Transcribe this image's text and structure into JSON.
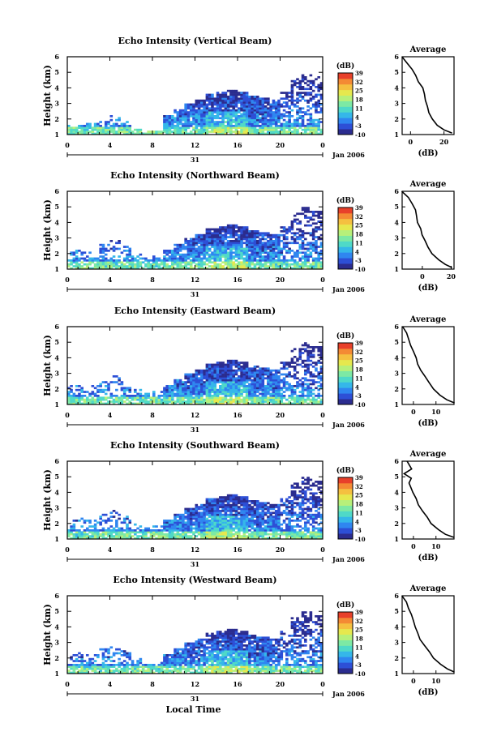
{
  "figure": {
    "xlabel_bottom": "Local Time",
    "date_label": "Jan 2006",
    "day_label": "31",
    "x_ticks": [
      "0",
      "4",
      "8",
      "12",
      "16",
      "20",
      "0"
    ],
    "y_ticks": [
      "1",
      "2",
      "3",
      "4",
      "5",
      "6"
    ],
    "ylabel": "Height (km)",
    "colorbar_unit": "(dB)",
    "colorbar_ticks": [
      "-10",
      "-3",
      "4",
      "11",
      "18",
      "25",
      "32",
      "39"
    ],
    "avg_title": "Average",
    "avg_xlabel": "(dB)",
    "colormap": [
      "#2b2c8f",
      "#2d4fd6",
      "#2f86f0",
      "#35b7e9",
      "#4fd9c8",
      "#7de9a4",
      "#b7f07a",
      "#e6e84e",
      "#f5c040",
      "#f48a34",
      "#e8402a"
    ]
  },
  "chart_data": [
    {
      "type": "heatmap",
      "title": "Echo Intensity (Vertical Beam)",
      "xlim": [
        0,
        24
      ],
      "ylim": [
        1,
        6
      ],
      "clim": [
        -10,
        39
      ],
      "avg": {
        "ticks": [
          "0",
          "20"
        ],
        "tick_values": [
          0,
          20
        ],
        "xlim": [
          -5,
          26
        ],
        "heights": [
          6.0,
          5.6,
          5.2,
          4.8,
          4.4,
          4.0,
          3.6,
          3.2,
          2.8,
          2.4,
          2.0,
          1.6,
          1.3,
          1.1
        ],
        "values": [
          -5,
          -2,
          1,
          3,
          5,
          7,
          8,
          9,
          10,
          11,
          13,
          16,
          20,
          25
        ]
      }
    },
    {
      "type": "heatmap",
      "title": "Echo Intensity (Northward Beam)",
      "xlim": [
        0,
        24
      ],
      "ylim": [
        1,
        6
      ],
      "clim": [
        -10,
        39
      ],
      "avg": {
        "ticks": [
          "0",
          "20"
        ],
        "tick_values": [
          0,
          20
        ],
        "xlim": [
          -14,
          22
        ],
        "heights": [
          6.0,
          5.6,
          5.2,
          4.8,
          4.4,
          4.0,
          3.6,
          3.2,
          2.8,
          2.4,
          2.0,
          1.6,
          1.3,
          1.1
        ],
        "values": [
          -14,
          -10,
          -7,
          -5,
          -4,
          -3,
          -1,
          0,
          2,
          4,
          7,
          11,
          16,
          21
        ]
      }
    },
    {
      "type": "heatmap",
      "title": "Echo Intensity (Eastward Beam)",
      "xlim": [
        0,
        24
      ],
      "ylim": [
        1,
        6
      ],
      "clim": [
        -10,
        39
      ],
      "avg": {
        "ticks": [
          "0",
          "10"
        ],
        "tick_values": [
          0,
          10
        ],
        "xlim": [
          -5,
          18
        ],
        "heights": [
          6.0,
          5.6,
          5.2,
          4.8,
          4.4,
          4.0,
          3.6,
          3.2,
          2.8,
          2.4,
          2.0,
          1.6,
          1.3,
          1.1
        ],
        "values": [
          -5,
          -3,
          -2,
          -1,
          0,
          1,
          2,
          3,
          5,
          7,
          9,
          12,
          15,
          18
        ]
      }
    },
    {
      "type": "heatmap",
      "title": "Echo Intensity (Southward Beam)",
      "xlim": [
        0,
        24
      ],
      "ylim": [
        1,
        6
      ],
      "clim": [
        -10,
        39
      ],
      "avg": {
        "ticks": [
          "0",
          "10"
        ],
        "tick_values": [
          0,
          10
        ],
        "xlim": [
          -5,
          18
        ],
        "heights": [
          6.0,
          5.5,
          5.2,
          4.9,
          4.6,
          4.0,
          3.6,
          3.2,
          2.8,
          2.4,
          2.0,
          1.6,
          1.3,
          1.1
        ],
        "values": [
          -3,
          -1,
          -4,
          -1,
          -2,
          0,
          1,
          2,
          4,
          6,
          8,
          11,
          14,
          18
        ]
      }
    },
    {
      "type": "heatmap",
      "title": "Echo Intensity (Westward Beam)",
      "xlim": [
        0,
        24
      ],
      "ylim": [
        1,
        6
      ],
      "clim": [
        -10,
        39
      ],
      "avg": {
        "ticks": [
          "0",
          "10"
        ],
        "tick_values": [
          0,
          10
        ],
        "xlim": [
          -5,
          18
        ],
        "heights": [
          6.0,
          5.6,
          5.2,
          4.8,
          4.4,
          4.0,
          3.6,
          3.2,
          2.8,
          2.4,
          2.0,
          1.6,
          1.3,
          1.1
        ],
        "values": [
          -5,
          -3,
          -2,
          -1,
          0,
          1,
          2,
          3,
          5,
          7,
          9,
          12,
          15,
          18
        ]
      }
    }
  ]
}
